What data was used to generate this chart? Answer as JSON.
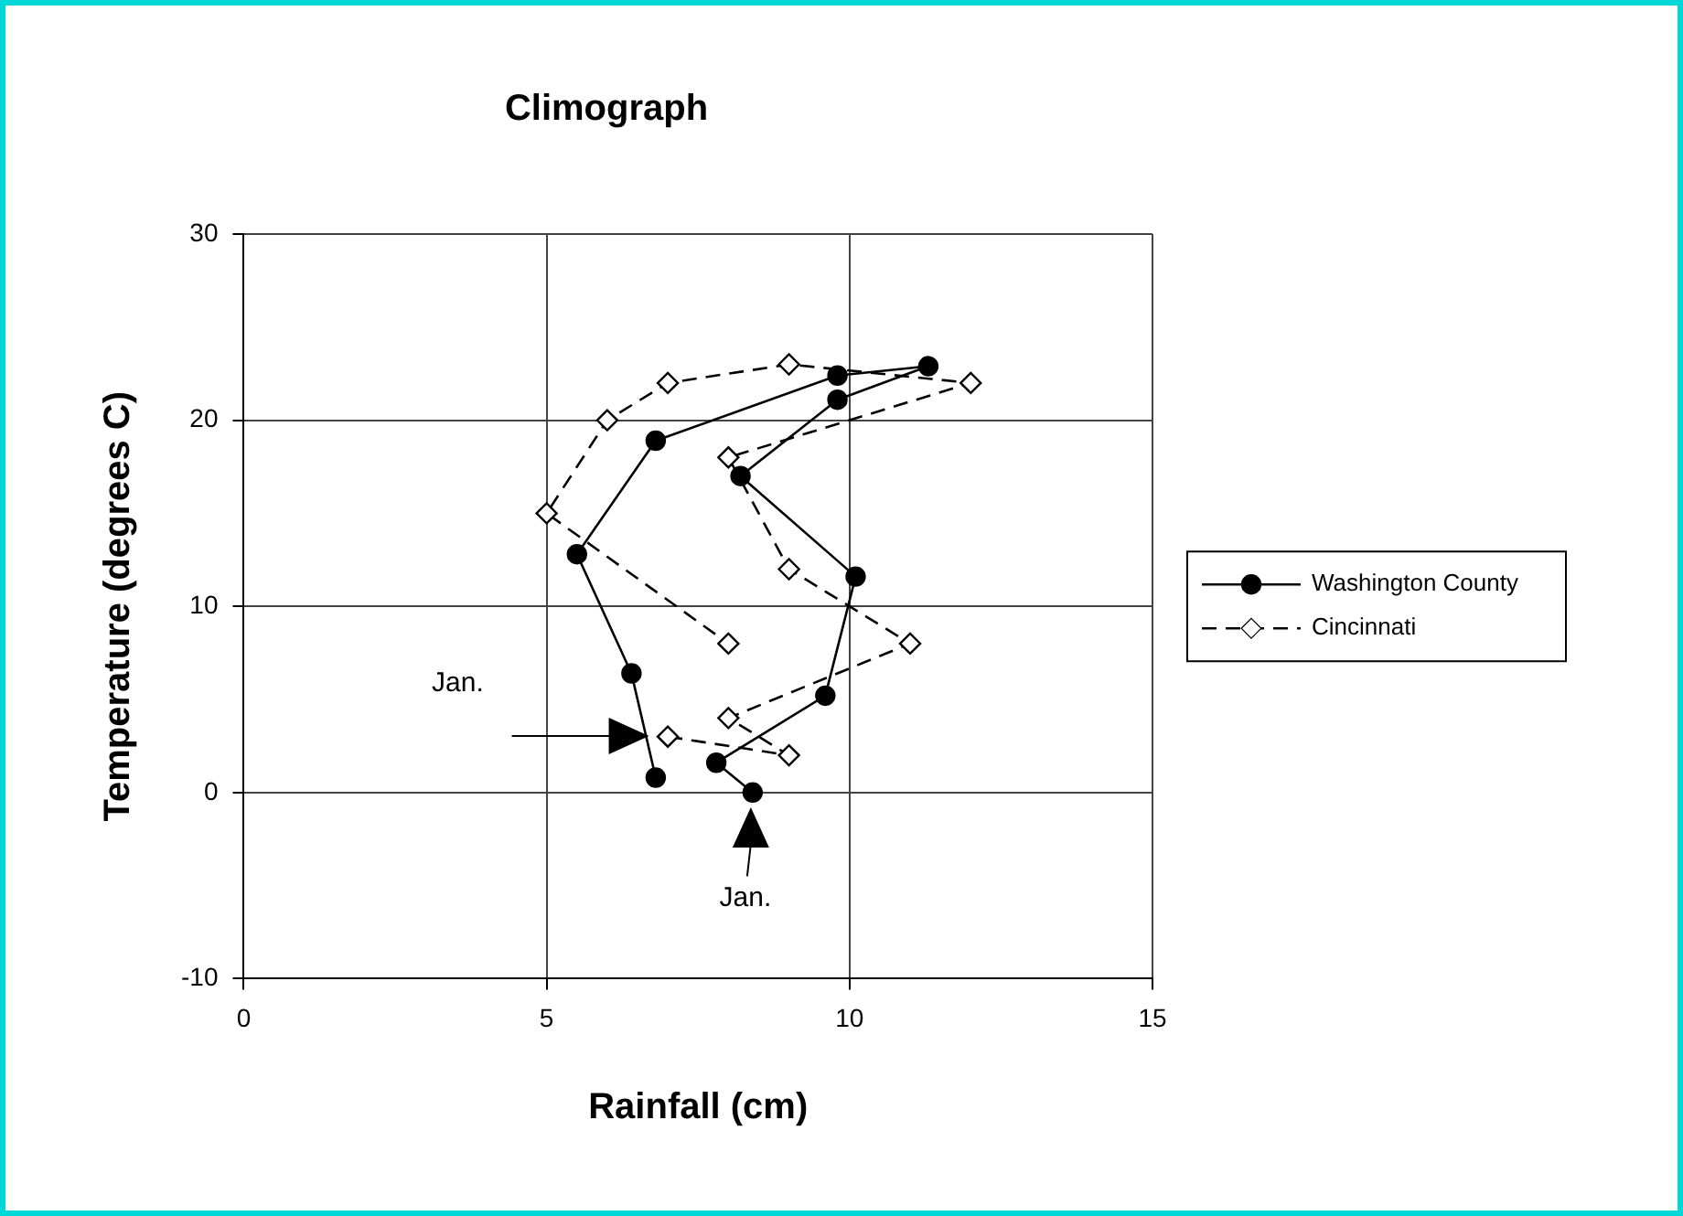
{
  "chart_data": {
    "type": "line",
    "title": "Climograph",
    "xlabel": "Rainfall (cm)",
    "ylabel": "Temperature (degrees C)",
    "xlim": [
      0,
      15
    ],
    "xticks": [
      0,
      5,
      10,
      15
    ],
    "ylim": [
      -10,
      30
    ],
    "yticks": [
      -10,
      0,
      10,
      20,
      30
    ],
    "grid": true,
    "legend": "right",
    "series": [
      {
        "name": "Washington County",
        "color": "#000000",
        "marker": "circle",
        "line_style": "solid",
        "x": [
          8.4,
          7.8,
          9.6,
          10.1,
          8.2,
          9.8,
          11.3,
          9.8,
          6.8,
          5.5,
          6.4,
          6.8
        ],
        "values": [
          0,
          1.6,
          5.2,
          11.6,
          17,
          21.1,
          22.9,
          22.4,
          18.9,
          12.8,
          6.4,
          0.8
        ]
      },
      {
        "name": "Cincinnati",
        "color": "#000000",
        "marker": "diamond",
        "line_style": "dashed",
        "x": [
          7,
          9,
          8,
          11,
          9,
          8,
          12,
          9,
          7,
          6,
          5,
          8
        ],
        "values": [
          3,
          2,
          4,
          8,
          12,
          18,
          22,
          23,
          22,
          20,
          15,
          8
        ]
      }
    ],
    "annotations": [
      "Jan.",
      "Jan."
    ]
  }
}
